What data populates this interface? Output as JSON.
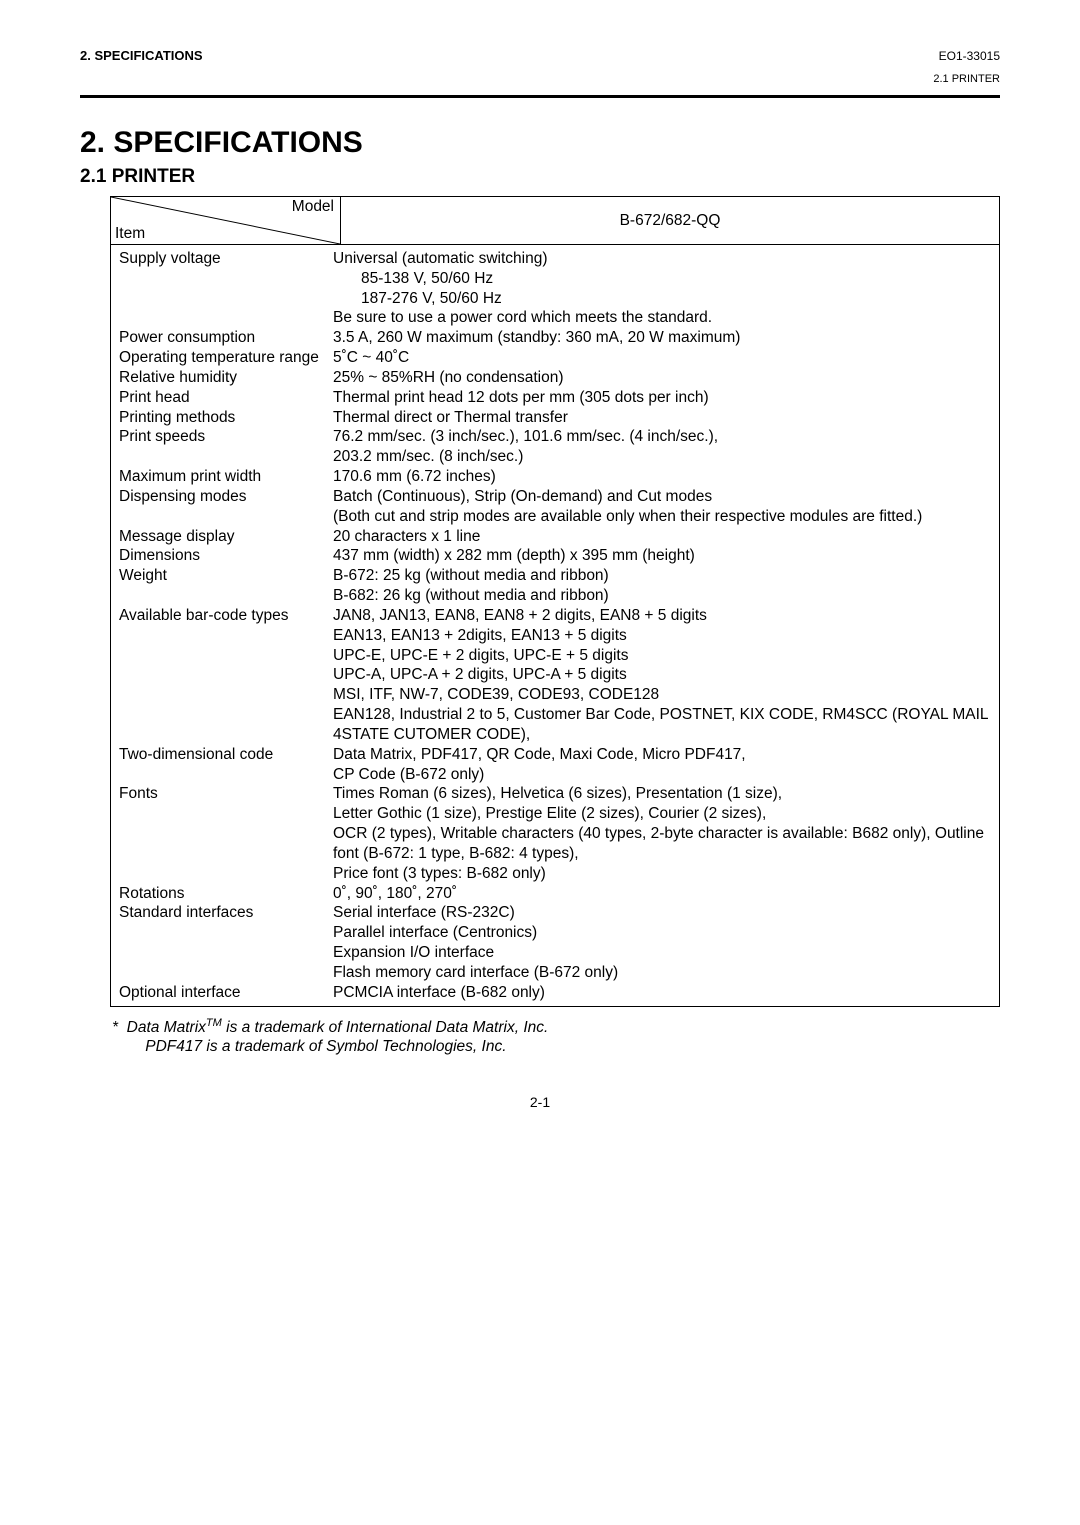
{
  "header": {
    "left": "2.   SPECIFICATIONS",
    "rightTop": "EO1-33015",
    "rightSub": "2.1 PRINTER"
  },
  "title": "2. SPECIFICATIONS",
  "subtitle": "2.1  PRINTER",
  "table": {
    "diagTop": "Model",
    "diagBottom": "Item",
    "modelHeader": "B-672/682-QQ",
    "rows": [
      {
        "label": "Supply voltage",
        "value": "Universal (automatic switching)"
      },
      {
        "label": "",
        "value": "85-138 V, 50/60 Hz",
        "indent": true
      },
      {
        "label": "",
        "value": "187-276 V, 50/60 Hz",
        "indent": true
      },
      {
        "label": "",
        "value": "Be sure to use a power cord which meets the standard."
      },
      {
        "label": "Power consumption",
        "value": "3.5 A, 260 W maximum (standby:  360 mA, 20 W maximum)"
      },
      {
        "label": "Operating temperature range",
        "value": "5˚C ~ 40˚C"
      },
      {
        "label": "Relative humidity",
        "value": "25% ~ 85%RH (no condensation)"
      },
      {
        "label": "Print head",
        "value": "Thermal print head 12 dots per mm (305 dots per inch)"
      },
      {
        "label": "Printing methods",
        "value": "Thermal direct or Thermal transfer"
      },
      {
        "label": "Print speeds",
        "value": "76.2 mm/sec. (3 inch/sec.), 101.6 mm/sec. (4 inch/sec.),"
      },
      {
        "label": "",
        "value": "203.2 mm/sec. (8 inch/sec.)"
      },
      {
        "label": "Maximum print width",
        "value": "170.6 mm (6.72 inches)"
      },
      {
        "label": "Dispensing modes",
        "value": "Batch (Continuous), Strip (On-demand) and Cut modes"
      },
      {
        "label": "",
        "value": "(Both cut and strip modes are available only when their respective modules are fitted.)"
      },
      {
        "label": "Message display",
        "value": "20 characters x 1 line"
      },
      {
        "label": "Dimensions",
        "value": "437 mm (width) x 282 mm (depth) x 395 mm (height)"
      },
      {
        "label": "Weight",
        "value": "B-672: 25 kg (without media and ribbon)"
      },
      {
        "label": "",
        "value": "B-682: 26 kg (without media and ribbon)"
      },
      {
        "label": "Available bar-code types",
        "value": "JAN8, JAN13, EAN8, EAN8 + 2 digits, EAN8 + 5 digits"
      },
      {
        "label": "",
        "value": "EAN13, EAN13 + 2digits, EAN13 + 5 digits"
      },
      {
        "label": "",
        "value": "UPC-E, UPC-E + 2 digits, UPC-E + 5 digits"
      },
      {
        "label": "",
        "value": "UPC-A, UPC-A + 2 digits, UPC-A + 5 digits"
      },
      {
        "label": "",
        "value": "MSI, ITF, NW-7, CODE39, CODE93, CODE128"
      },
      {
        "label": "",
        "value": "EAN128, Industrial 2 to 5, Customer Bar Code, POSTNET, KIX CODE, RM4SCC (ROYAL MAIL 4STATE CUTOMER CODE),"
      },
      {
        "label": "Two-dimensional code",
        "value": "Data Matrix, PDF417, QR Code, Maxi Code, Micro PDF417,"
      },
      {
        "label": "",
        "value": "CP Code (B-672 only)"
      },
      {
        "label": "Fonts",
        "value": "Times Roman (6 sizes), Helvetica (6 sizes), Presentation (1 size),"
      },
      {
        "label": "",
        "value": "Letter Gothic (1 size), Prestige Elite (2 sizes), Courier (2 sizes),"
      },
      {
        "label": "",
        "value": "OCR (2 types), Writable characters (40 types, 2-byte character is available: B682 only), Outline font (B-672: 1 type, B-682: 4 types),"
      },
      {
        "label": "",
        "value": "Price font (3 types: B-682 only)"
      },
      {
        "label": "Rotations",
        "value": "0˚, 90˚, 180˚, 270˚"
      },
      {
        "label": "Standard interfaces",
        "value": "Serial interface (RS-232C)"
      },
      {
        "label": "",
        "value": "Parallel interface (Centronics)"
      },
      {
        "label": "",
        "value": "Expansion I/O interface"
      },
      {
        "label": "",
        "value": "Flash memory card interface (B-672 only)"
      },
      {
        "label": "Optional interface",
        "value": "PCMCIA interface (B-682 only)"
      }
    ]
  },
  "footnote": {
    "mark": "*",
    "line1a": "Data Matrix",
    "line1sup": "TM",
    "line1b": " is a trademark of International Data Matrix, Inc.",
    "line2": "PDF417 is a trademark of Symbol Technologies, Inc."
  },
  "pageNum": "2-1"
}
